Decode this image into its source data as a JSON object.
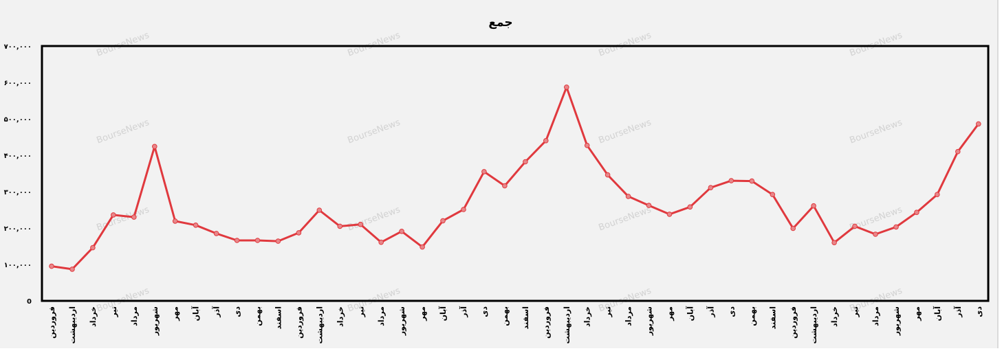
{
  "chart_data": {
    "type": "line",
    "title": "جمع",
    "watermark": "BourseNews",
    "ylim": [
      0,
      700000
    ],
    "y_ticks": [
      {
        "value": 0,
        "label": "0"
      },
      {
        "value": 100000,
        "label": "۱۰۰,۰۰۰"
      },
      {
        "value": 200000,
        "label": "۲۰۰,۰۰۰"
      },
      {
        "value": 300000,
        "label": "۳۰۰,۰۰۰"
      },
      {
        "value": 400000,
        "label": "۴۰۰,۰۰۰"
      },
      {
        "value": 500000,
        "label": "۵۰۰,۰۰۰"
      },
      {
        "value": 600000,
        "label": "۶۰۰,۰۰۰"
      },
      {
        "value": 700000,
        "label": "۷۰۰,۰۰۰"
      }
    ],
    "categories": [
      "فروردین",
      "اردیبهشت",
      "خرداد",
      "تیر",
      "مرداد",
      "شهریور",
      "مهر",
      "آبان",
      "آذر",
      "دی",
      "بهمن",
      "اسفند",
      "فروردین",
      "اردیبهشت",
      "خرداد",
      "تیر",
      "مرداد",
      "شهریور",
      "مهر",
      "آبان",
      "آذر",
      "دی",
      "بهمن",
      "اسفند",
      "فروردین",
      "اردیبهشت",
      "خرداد",
      "تیر",
      "مرداد",
      "شهریور",
      "مهر",
      "آبان",
      "آذر",
      "دی",
      "بهمن",
      "اسفند",
      "فروردین",
      "اردیبهشت",
      "خرداد",
      "تیر",
      "مرداد",
      "شهریور",
      "مهر",
      "آبان",
      "آذر",
      "دی"
    ],
    "series": [
      {
        "color": "#e0393e",
        "marker_color": "#e8878a",
        "values": [
          95000,
          87000,
          146000,
          236000,
          230000,
          424000,
          219000,
          208000,
          185000,
          166000,
          166000,
          164000,
          187000,
          249000,
          205000,
          210000,
          161000,
          191000,
          148000,
          220000,
          251000,
          355000,
          316000,
          382000,
          440000,
          587000,
          427000,
          346000,
          287000,
          262000,
          238000,
          258000,
          311000,
          330000,
          329000,
          292000,
          199000,
          261000,
          160000,
          205000,
          183000,
          203000,
          243000,
          292000,
          410000,
          486000
        ]
      }
    ],
    "background": "#f2f2f2",
    "plot_border": "#000000",
    "grid": false,
    "legend": "none"
  }
}
